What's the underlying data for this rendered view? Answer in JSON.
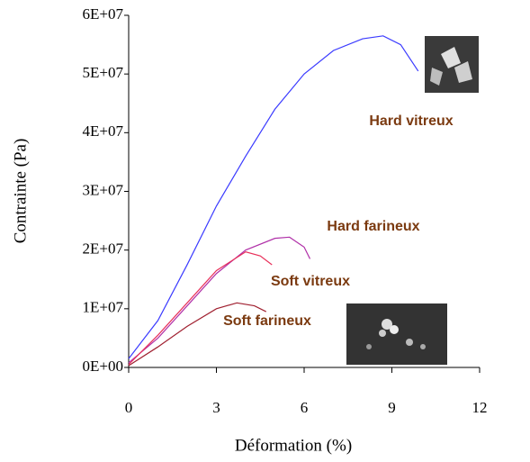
{
  "chart_data": {
    "type": "line",
    "x_label": "Déformation (%)",
    "y_label": "Contrainte (Pa)",
    "xlim": [
      0,
      12
    ],
    "xticks": [
      0,
      3,
      6,
      9,
      12
    ],
    "ylim": [
      0,
      60000000
    ],
    "yticks": [
      {
        "value": 0,
        "label": "0E+00"
      },
      {
        "value": 10000000,
        "label": "1E+07"
      },
      {
        "value": 20000000,
        "label": "2E+07"
      },
      {
        "value": 30000000,
        "label": "3E+07"
      },
      {
        "value": 40000000,
        "label": "4E+07"
      },
      {
        "value": 50000000,
        "label": "5E+07"
      },
      {
        "value": 60000000,
        "label": "6E+07"
      }
    ],
    "grid": false,
    "series": [
      {
        "name": "Hard vitreux",
        "color": "#3a3aff",
        "x": [
          0,
          1,
          2,
          3,
          4,
          5,
          6,
          7,
          8,
          8.7,
          9.3,
          9.9
        ],
        "values": [
          1500000,
          8000000,
          17500000,
          27500000,
          36000000,
          44000000,
          50000000,
          54000000,
          56000000,
          56500000,
          55000000,
          50500000
        ]
      },
      {
        "name": "Hard farineux",
        "color": "#b030a8",
        "x": [
          0,
          1,
          2,
          3,
          4,
          5,
          5.5,
          6,
          6.2
        ],
        "values": [
          800000,
          5000000,
          10500000,
          16000000,
          20000000,
          22000000,
          22200000,
          20500000,
          18500000
        ]
      },
      {
        "name": "Soft vitreux",
        "color": "#e8305a",
        "x": [
          0,
          1,
          2,
          3,
          4,
          4.5,
          4.9
        ],
        "values": [
          500000,
          5500000,
          11000000,
          16500000,
          19700000,
          19000000,
          17500000
        ]
      },
      {
        "name": "Soft farineux",
        "color": "#a02030",
        "x": [
          0,
          1,
          2,
          3,
          3.7,
          4.3,
          4.7
        ],
        "values": [
          300000,
          3500000,
          7000000,
          10000000,
          11000000,
          10500000,
          9500000
        ]
      }
    ]
  }
}
